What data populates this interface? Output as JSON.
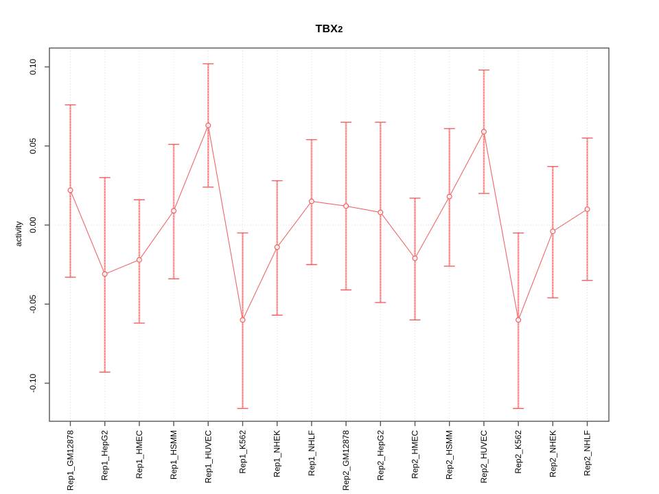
{
  "chart_data": {
    "type": "line",
    "title": "TBX2",
    "title_main": "TBX",
    "title_sub": "2",
    "ylabel": "activity",
    "xlabel": "",
    "categories": [
      "Rep1_GM12878",
      "Rep1_HepG2",
      "Rep1_HMEC",
      "Rep1_HSMM",
      "Rep1_HUVEC",
      "Rep1_K562",
      "Rep1_NHEK",
      "Rep1_NHLF",
      "Rep2_GM12878",
      "Rep2_HepG2",
      "Rep2_HMEC",
      "Rep2_HSMM",
      "Rep2_HUVEC",
      "Rep2_K562",
      "Rep2_NHEK",
      "Rep2_NHLF"
    ],
    "series": [
      {
        "name": "activity",
        "values": [
          0.022,
          -0.031,
          -0.022,
          0.009,
          0.063,
          -0.06,
          -0.014,
          0.015,
          0.012,
          0.008,
          -0.021,
          0.018,
          0.059,
          -0.06,
          -0.004,
          0.01
        ],
        "error_upper": [
          0.076,
          0.03,
          0.016,
          0.051,
          0.102,
          -0.005,
          0.028,
          0.054,
          0.065,
          0.065,
          0.017,
          0.061,
          0.098,
          -0.005,
          0.037,
          0.055
        ],
        "error_lower": [
          -0.033,
          -0.093,
          -0.062,
          -0.034,
          0.024,
          -0.116,
          -0.057,
          -0.025,
          -0.041,
          -0.049,
          -0.06,
          -0.026,
          0.02,
          -0.116,
          -0.046,
          -0.035
        ]
      }
    ],
    "y_ticks": [
      0.1,
      0.05,
      0.0,
      -0.05,
      -0.1
    ],
    "y_tick_labels": [
      "0.10",
      "0.05",
      "0.00",
      "-0.05",
      "-0.10"
    ],
    "ylim": [
      -0.124,
      0.112
    ],
    "legend": "none",
    "grid": {
      "vertical_dotted_per_category": true,
      "horizontal_dotted_zero_line": true
    },
    "colors": {
      "point": "#ee5f5f",
      "line": "#f06565",
      "error_bar": "#ffabab",
      "error_cap": "#ee5f5f",
      "grid": "#d9d9d9",
      "axis": "#555555",
      "text": "#000000"
    }
  }
}
